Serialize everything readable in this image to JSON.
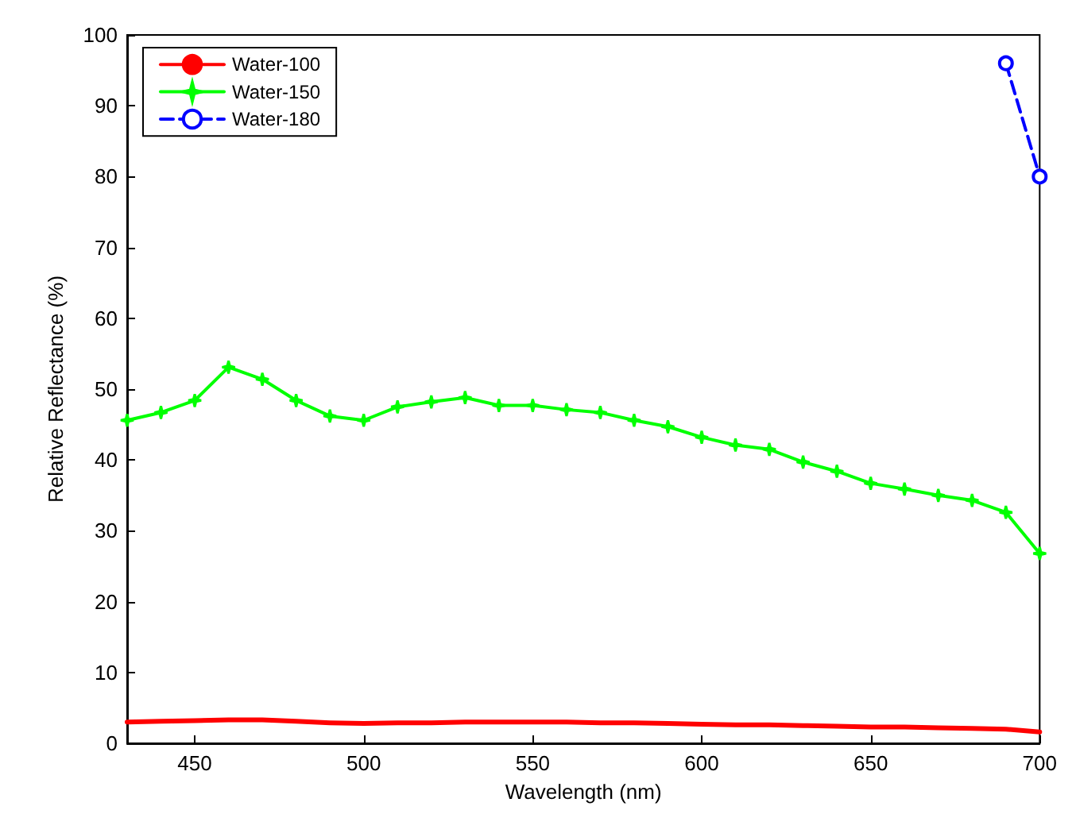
{
  "chart_data": {
    "type": "line",
    "xlabel": "Wavelength (nm)",
    "ylabel": "Relative Reflectance (%)",
    "xlim": [
      430,
      700
    ],
    "xticks": [
      450,
      500,
      550,
      600,
      650,
      700
    ],
    "ylim": [
      0,
      100
    ],
    "yticks": [
      0,
      10,
      20,
      30,
      40,
      50,
      60,
      70,
      80,
      90,
      100
    ],
    "grid": false,
    "legend": "top left",
    "series": [
      {
        "name": "Water-100",
        "color": "#ff0000",
        "marker": "none",
        "line_style": "solid",
        "x": [
          430,
          440,
          450,
          460,
          470,
          480,
          490,
          500,
          510,
          520,
          530,
          540,
          550,
          560,
          570,
          580,
          590,
          600,
          610,
          620,
          630,
          640,
          650,
          660,
          670,
          680,
          690,
          700
        ],
        "values": [
          3.0,
          3.1,
          3.2,
          3.3,
          3.3,
          3.1,
          2.9,
          2.8,
          2.9,
          2.9,
          3.0,
          3.0,
          3.0,
          3.0,
          2.9,
          2.9,
          2.8,
          2.7,
          2.6,
          2.6,
          2.5,
          2.4,
          2.3,
          2.3,
          2.2,
          2.1,
          2.0,
          1.6
        ]
      },
      {
        "name": "Water-150",
        "color": "#00ff00",
        "marker": "star",
        "line_style": "solid",
        "x": [
          430,
          440,
          450,
          460,
          470,
          480,
          490,
          500,
          510,
          520,
          530,
          540,
          550,
          560,
          570,
          580,
          590,
          600,
          610,
          620,
          630,
          640,
          650,
          660,
          670,
          680,
          690,
          700
        ],
        "values": [
          45.6,
          46.7,
          48.4,
          53.1,
          51.4,
          48.4,
          46.2,
          45.6,
          47.5,
          48.2,
          48.8,
          47.7,
          47.7,
          47.1,
          46.7,
          45.6,
          44.7,
          43.2,
          42.1,
          41.5,
          39.7,
          38.4,
          36.7,
          35.9,
          35.0,
          34.3,
          32.6,
          26.8
        ]
      },
      {
        "name": "Water-180",
        "color": "#0000ff",
        "marker": "circle",
        "line_style": "dashed",
        "x": [
          690,
          700
        ],
        "values": [
          96,
          80
        ]
      }
    ]
  }
}
